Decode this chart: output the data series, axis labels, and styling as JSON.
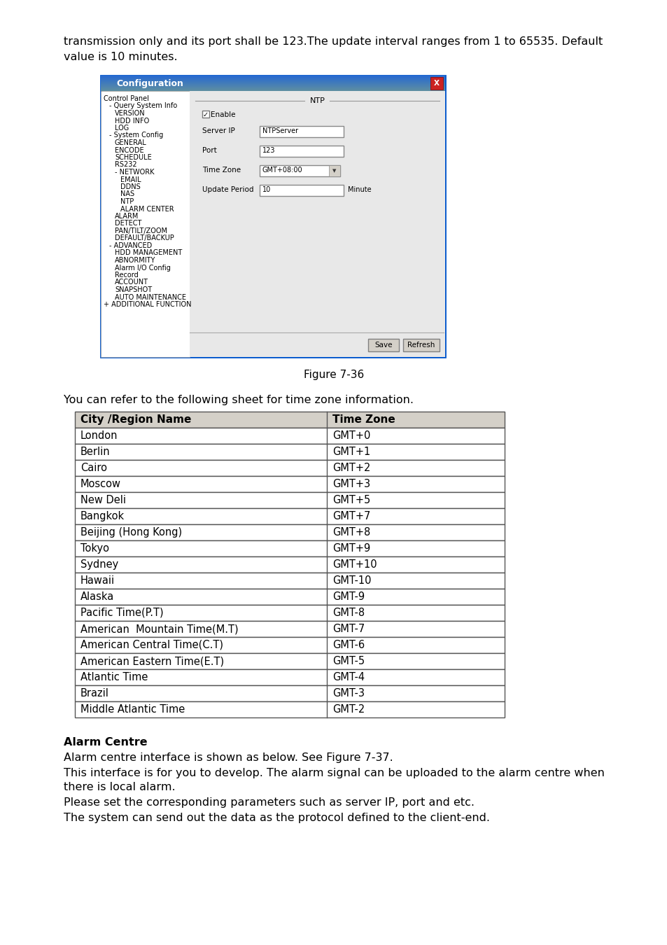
{
  "bg_color": "#ffffff",
  "intro_text_line1": "transmission only and its port shall be 123.The update interval ranges from 1 to 65535. Default",
  "intro_text_line2": "value is 10 minutes.",
  "figure_label": "Figure 7-36",
  "table_intro": "You can refer to the following sheet for time zone information.",
  "table_header": [
    "City /Region Name",
    "Time Zone"
  ],
  "table_rows": [
    [
      "London",
      "GMT+0"
    ],
    [
      "Berlin",
      "GMT+1"
    ],
    [
      "Cairo",
      "GMT+2"
    ],
    [
      "Moscow",
      "GMT+3"
    ],
    [
      "New Deli",
      "GMT+5"
    ],
    [
      "Bangkok",
      "GMT+7"
    ],
    [
      "Beijing (Hong Kong)",
      "GMT+8"
    ],
    [
      "Tokyo",
      "GMT+9"
    ],
    [
      "Sydney",
      "GMT+10"
    ],
    [
      "Hawaii",
      "GMT-10"
    ],
    [
      "Alaska",
      "GMT-9"
    ],
    [
      "Pacific Time(P.T)",
      "GMT-8"
    ],
    [
      "American  Mountain Time(M.T)",
      "GMT-7"
    ],
    [
      "American Central Time(C.T)",
      "GMT-6"
    ],
    [
      "American Eastern Time(E.T)",
      "GMT-5"
    ],
    [
      "Atlantic Time",
      "GMT-4"
    ],
    [
      "Brazil",
      "GMT-3"
    ],
    [
      "Middle Atlantic Time",
      "GMT-2"
    ]
  ],
  "header_bg": "#d4d0c8",
  "row_bg": "#ffffff",
  "table_border": "#808080",
  "alarm_title": "Alarm Centre",
  "alarm_para1": "Alarm centre interface is shown as below. See Figure 7-37.",
  "alarm_para2a": "This interface is for you to develop. The alarm signal can be uploaded to the alarm centre when",
  "alarm_para2b": "there is local alarm.",
  "alarm_para3": "Please set the corresponding parameters such as server IP, port and etc.",
  "alarm_para4": "The system can send out the data as the protocol defined to the client-end.",
  "text_color": "#000000",
  "win_title_text": "Configuration",
  "win_title_bg1": "#4080d0",
  "win_title_bg2": "#2060c0",
  "win_border_color": "#0000aa",
  "win_content_bg": "#ece9d8",
  "right_panel_bg": "#e8e8e8",
  "left_panel_bg": "#ffffff",
  "tree_items": [
    [
      0,
      "Control Panel"
    ],
    [
      1,
      "- Query System Info"
    ],
    [
      2,
      "VERSION"
    ],
    [
      2,
      "HDD INFO"
    ],
    [
      2,
      "LOG"
    ],
    [
      1,
      "- System Config"
    ],
    [
      2,
      "GENERAL"
    ],
    [
      2,
      "ENCODE"
    ],
    [
      2,
      "SCHEDULE"
    ],
    [
      2,
      "RS232"
    ],
    [
      2,
      "- NETWORK"
    ],
    [
      3,
      "EMAIL"
    ],
    [
      3,
      "DDNS"
    ],
    [
      3,
      "NAS"
    ],
    [
      3,
      "NTP"
    ],
    [
      3,
      "ALARM CENTER"
    ],
    [
      2,
      "ALARM"
    ],
    [
      2,
      "DETECT"
    ],
    [
      2,
      "PAN/TILT/ZOOM"
    ],
    [
      2,
      "DEFAULT/BACKUP"
    ],
    [
      1,
      "- ADVANCED"
    ],
    [
      2,
      "HDD MANAGEMENT"
    ],
    [
      2,
      "ABNORMITY"
    ],
    [
      2,
      "Alarm I/O Config"
    ],
    [
      2,
      "Record"
    ],
    [
      2,
      "ACCOUNT"
    ],
    [
      2,
      "SNAPSHOT"
    ],
    [
      2,
      "AUTO MAINTENANCE"
    ],
    [
      0,
      "+ ADDITIONAL FUNCTION"
    ]
  ]
}
